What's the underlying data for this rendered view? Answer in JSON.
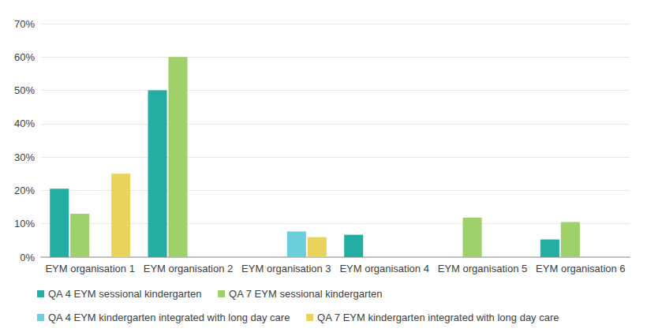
{
  "chart_data": {
    "type": "bar",
    "categories": [
      "EYM organisation 1",
      "EYM organisation 2",
      "EYM organisation 3",
      "EYM organisation 4",
      "EYM organisation 5",
      "EYM organisation 6"
    ],
    "series": [
      {
        "name": "QA 4 EYM sessional kindergarten",
        "color": "#26ada3",
        "values": [
          20.5,
          50,
          null,
          6.7,
          null,
          5.3
        ]
      },
      {
        "name": "QA 7 EYM sessional kindergarten",
        "color": "#9fd16a",
        "values": [
          13,
          60,
          null,
          null,
          11.8,
          10.5
        ]
      },
      {
        "name": "QA 4 EYM kindergarten integrated with long day care",
        "color": "#6ccddc",
        "values": [
          null,
          null,
          7.7,
          null,
          null,
          null
        ]
      },
      {
        "name": "QA 7 EYM kindergarten integrated with long day care",
        "color": "#e9d35a",
        "values": [
          25,
          null,
          6,
          null,
          null,
          null
        ]
      }
    ],
    "ylim": [
      0,
      70
    ],
    "yticks": [
      {
        "value": 0,
        "label": "0%"
      },
      {
        "value": 10,
        "label": "10%"
      },
      {
        "value": 20,
        "label": "20%"
      },
      {
        "value": 30,
        "label": "30%"
      },
      {
        "value": 40,
        "label": "40%"
      },
      {
        "value": 50,
        "label": "50%"
      },
      {
        "value": 60,
        "label": "60%"
      },
      {
        "value": 70,
        "label": "70%"
      }
    ],
    "grid": true,
    "legend": "bottom"
  }
}
